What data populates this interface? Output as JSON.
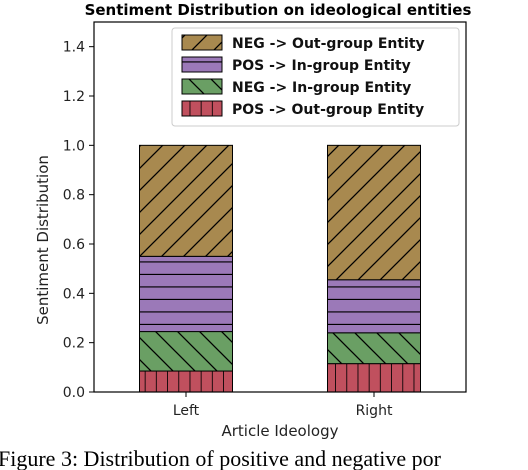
{
  "chart_data": {
    "type": "bar",
    "stacked": true,
    "title": "Sentiment Distribution on ideological entities",
    "xlabel": "Article Ideology",
    "ylabel": "Sentiment Distribution",
    "categories": [
      "Left",
      "Right"
    ],
    "ylim": [
      0,
      1.5
    ],
    "yticks": [
      "0.0",
      "0.2",
      "0.4",
      "0.6",
      "0.8",
      "1.0",
      "1.2",
      "1.4"
    ],
    "legend_position": "top-right",
    "series": [
      {
        "name": "POS -> Out-group Entity",
        "values": [
          0.085,
          0.115
        ],
        "color": "#c0505e",
        "hatch": "vertical"
      },
      {
        "name": "NEG ->  In-group Entity",
        "values": [
          0.16,
          0.125
        ],
        "color": "#6a9f64",
        "hatch": "backslash"
      },
      {
        "name": "POS -> In-group Entity",
        "values": [
          0.305,
          0.215
        ],
        "color": "#9b79b8",
        "hatch": "horizontal"
      },
      {
        "name": "NEG -> Out-group Entity",
        "values": [
          0.45,
          0.545
        ],
        "color": "#a8894f",
        "hatch": "slash"
      }
    ],
    "legend_order": [
      3,
      2,
      1,
      0
    ]
  },
  "caption": "Figure 3: Distribution of positive and negative por"
}
